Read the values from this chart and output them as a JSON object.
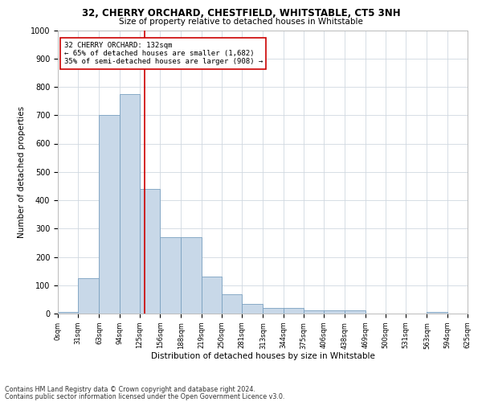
{
  "title1": "32, CHERRY ORCHARD, CHESTFIELD, WHITSTABLE, CT5 3NH",
  "title2": "Size of property relative to detached houses in Whitstable",
  "xlabel": "Distribution of detached houses by size in Whitstable",
  "ylabel": "Number of detached properties",
  "bin_edges": [
    0,
    31,
    63,
    94,
    125,
    156,
    188,
    219,
    250,
    281,
    313,
    344,
    375,
    406,
    438,
    469,
    500,
    531,
    563,
    594,
    625
  ],
  "bin_counts": [
    5,
    125,
    700,
    775,
    440,
    270,
    270,
    130,
    68,
    35,
    20,
    20,
    10,
    10,
    10,
    0,
    0,
    0,
    5,
    0
  ],
  "bar_color": "#c8d8e8",
  "bar_edge_color": "#7aa0c0",
  "vline_x": 132,
  "vline_color": "#cc0000",
  "annotation_text": "32 CHERRY ORCHARD: 132sqm\n← 65% of detached houses are smaller (1,682)\n35% of semi-detached houses are larger (908) →",
  "annotation_box_color": "#cc0000",
  "ylim": [
    0,
    1000
  ],
  "yticks": [
    0,
    100,
    200,
    300,
    400,
    500,
    600,
    700,
    800,
    900,
    1000
  ],
  "footer1": "Contains HM Land Registry data © Crown copyright and database right 2024.",
  "footer2": "Contains public sector information licensed under the Open Government Licence v3.0.",
  "bg_color": "#ffffff",
  "grid_color": "#d0d8e0"
}
